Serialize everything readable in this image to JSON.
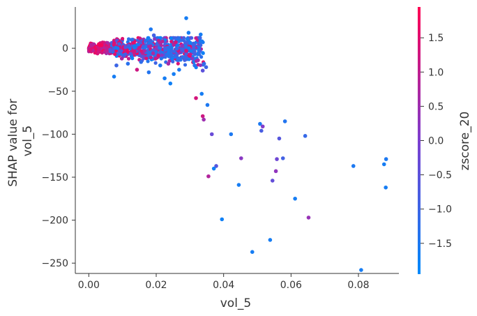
{
  "chart_data": {
    "type": "scatter",
    "xlabel": "vol_5",
    "ylabel_lines": [
      "SHAP value for",
      "vol_5"
    ],
    "xlim": [
      -0.004,
      0.092
    ],
    "ylim": [
      -262,
      48
    ],
    "xticks": [
      0.0,
      0.02,
      0.04,
      0.06,
      0.08
    ],
    "xtick_labels": [
      "0.00",
      "0.02",
      "0.04",
      "0.06",
      "0.08"
    ],
    "yticks": [
      0,
      -50,
      -100,
      -150,
      -200,
      -250
    ],
    "ytick_labels": [
      "0",
      "−50",
      "−100",
      "−150",
      "−200",
      "−250"
    ],
    "colorbar": {
      "label": "zscore_20",
      "range": [
        -1.95,
        1.95
      ],
      "ticks": [
        1.5,
        1.0,
        0.5,
        0.0,
        -0.5,
        -1.0,
        -1.5
      ],
      "tick_labels": [
        "1.5",
        "1.0",
        "0.5",
        "0.0",
        "−0.5",
        "−1.0",
        "−1.5"
      ],
      "color_low": "#008afb",
      "color_mid": "#7c3fd0",
      "color_high": "#ff0052"
    },
    "points": [
      {
        "x": 0.0289,
        "y": 35,
        "c": -1.6
      },
      {
        "x": 0.0296,
        "y": 18,
        "c": -1.6
      },
      {
        "x": 0.0332,
        "y": 16,
        "c": -1.6
      },
      {
        "x": 0.0184,
        "y": 22,
        "c": -1.5
      },
      {
        "x": 0.0193,
        "y": 15,
        "c": -0.9
      },
      {
        "x": 0.0342,
        "y": -18,
        "c": -1.2
      },
      {
        "x": 0.0348,
        "y": -22,
        "c": -1.0
      },
      {
        "x": 0.0242,
        "y": -41,
        "c": -1.7
      },
      {
        "x": 0.0225,
        "y": -35,
        "c": -1.6
      },
      {
        "x": 0.0075,
        "y": -33,
        "c": -1.6
      },
      {
        "x": 0.0143,
        "y": -25,
        "c": 1.2
      },
      {
        "x": 0.0252,
        "y": -30,
        "c": -1.6
      },
      {
        "x": 0.0268,
        "y": -25,
        "c": -1.5
      },
      {
        "x": 0.0258,
        "y": 7,
        "c": 1.3
      },
      {
        "x": 0.0277,
        "y": 3,
        "c": 0.3
      },
      {
        "x": 0.0289,
        "y": -3,
        "c": 1.4
      },
      {
        "x": 0.0306,
        "y": -12,
        "c": 0.2
      },
      {
        "x": 0.0338,
        "y": -26,
        "c": -0.5
      },
      {
        "x": 0.0178,
        "y": -28,
        "c": -1.4
      },
      {
        "x": 0.0155,
        "y": -16,
        "c": -1.2
      },
      {
        "x": 0.0212,
        "y": -20,
        "c": -1.5
      },
      {
        "x": 0.0198,
        "y": -12,
        "c": 1.1
      },
      {
        "x": 0.0236,
        "y": -18,
        "c": 0.6
      },
      {
        "x": 0.0314,
        "y": -20,
        "c": -1.4
      },
      {
        "x": 0.0324,
        "y": -14,
        "c": 0.5
      },
      {
        "x": 0.0082,
        "y": -20,
        "c": -1.0
      },
      {
        "x": 0.0098,
        "y": -12,
        "c": 0.7
      },
      {
        "x": 0.0116,
        "y": -18,
        "c": -1.3
      },
      {
        "x": 0.0335,
        "y": -53,
        "c": -1.6
      },
      {
        "x": 0.0318,
        "y": -58,
        "c": 1.3
      },
      {
        "x": 0.0352,
        "y": -66,
        "c": -1.5
      },
      {
        "x": 0.0338,
        "y": -79,
        "c": 1.2
      },
      {
        "x": 0.0341,
        "y": -83,
        "c": 0.5
      },
      {
        "x": 0.0365,
        "y": -100,
        "c": -0.3
      },
      {
        "x": 0.0422,
        "y": -100,
        "c": -1.5
      },
      {
        "x": 0.0378,
        "y": -137,
        "c": -0.6
      },
      {
        "x": 0.0355,
        "y": -149,
        "c": 0.8
      },
      {
        "x": 0.0371,
        "y": -140,
        "c": -1.7
      },
      {
        "x": 0.0395,
        "y": -199,
        "c": -1.7
      },
      {
        "x": 0.0445,
        "y": -159,
        "c": -1.6
      },
      {
        "x": 0.0452,
        "y": -128,
        "c": 0.2
      },
      {
        "x": 0.0485,
        "y": -237,
        "c": -1.6
      },
      {
        "x": 0.0508,
        "y": -88,
        "c": -1.5
      },
      {
        "x": 0.0516,
        "y": -91,
        "c": 0.1
      },
      {
        "x": 0.0512,
        "y": -96,
        "c": -0.8
      },
      {
        "x": 0.0538,
        "y": -223,
        "c": -1.6
      },
      {
        "x": 0.0545,
        "y": -154,
        "c": -0.4
      },
      {
        "x": 0.0555,
        "y": -143,
        "c": 0.3
      },
      {
        "x": 0.0558,
        "y": -129,
        "c": -0.2
      },
      {
        "x": 0.0565,
        "y": -105,
        "c": -0.6
      },
      {
        "x": 0.0576,
        "y": -128,
        "c": -0.9
      },
      {
        "x": 0.0582,
        "y": -85,
        "c": -1.4
      },
      {
        "x": 0.0612,
        "y": -175,
        "c": -1.6
      },
      {
        "x": 0.0642,
        "y": -102,
        "c": -1.1
      },
      {
        "x": 0.0652,
        "y": -197,
        "c": 0.4
      },
      {
        "x": 0.0785,
        "y": -137,
        "c": -1.5
      },
      {
        "x": 0.0808,
        "y": -258,
        "c": -1.6
      },
      {
        "x": 0.0876,
        "y": -135,
        "c": -1.6
      },
      {
        "x": 0.0882,
        "y": -129,
        "c": -1.5
      },
      {
        "x": 0.0881,
        "y": -162,
        "c": -1.6
      }
    ],
    "dense_cluster": {
      "description_for_script": "",
      "x_range": [
        0.0,
        0.034
      ],
      "y_range": [
        -25,
        12
      ],
      "count": 900
    }
  }
}
